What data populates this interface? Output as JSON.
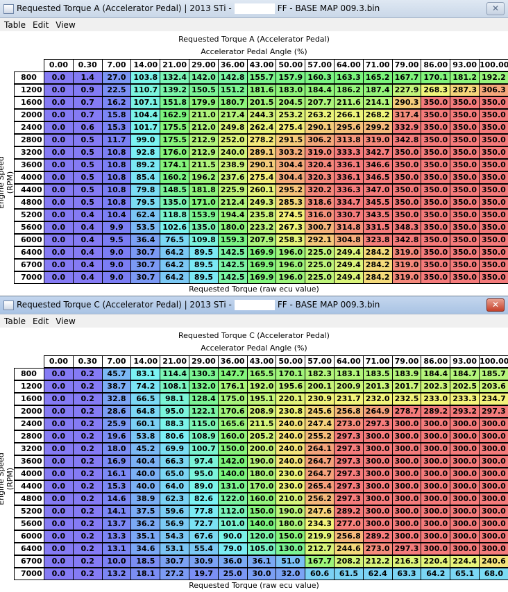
{
  "windows": [
    {
      "title_left": "Requested Torque A (Accelerator Pedal) | 2013 STi -",
      "title_right": "FF - BASE MAP 009.3.bin",
      "active": false,
      "menu": [
        "Table",
        "Edit",
        "View"
      ],
      "table_title": "Requested Torque A (Accelerator Pedal)",
      "x_label": "Accelerator Pedal Angle (%)",
      "y_label": "Engine Speed (RPM)",
      "footer": "Requested Torque (raw ecu value)",
      "columns": [
        "0.00",
        "0.30",
        "7.00",
        "14.00",
        "21.00",
        "29.00",
        "36.00",
        "43.00",
        "50.00",
        "57.00",
        "64.00",
        "71.00",
        "79.00",
        "86.00",
        "93.00",
        "100.00"
      ],
      "rows": [
        {
          "label": "800",
          "values": [
            "0.0",
            "1.4",
            "27.0",
            "103.8",
            "132.4",
            "142.0",
            "142.8",
            "155.7",
            "157.9",
            "160.3",
            "163.3",
            "165.2",
            "167.7",
            "170.1",
            "181.2",
            "192.2"
          ]
        },
        {
          "label": "1200",
          "values": [
            "0.0",
            "0.9",
            "22.5",
            "110.7",
            "139.2",
            "150.5",
            "151.2",
            "181.6",
            "183.0",
            "184.4",
            "186.2",
            "187.4",
            "227.9",
            "268.3",
            "287.3",
            "306.3"
          ]
        },
        {
          "label": "1600",
          "values": [
            "0.0",
            "0.7",
            "16.2",
            "107.1",
            "151.8",
            "179.9",
            "180.7",
            "201.5",
            "204.5",
            "207.7",
            "211.6",
            "214.1",
            "290.3",
            "350.0",
            "350.0",
            "350.0"
          ]
        },
        {
          "label": "2000",
          "values": [
            "0.0",
            "0.7",
            "15.8",
            "104.4",
            "162.9",
            "211.0",
            "217.4",
            "244.3",
            "253.2",
            "263.2",
            "266.1",
            "268.2",
            "317.4",
            "350.0",
            "350.0",
            "350.0"
          ]
        },
        {
          "label": "2400",
          "values": [
            "0.0",
            "0.6",
            "15.3",
            "101.7",
            "175.5",
            "212.0",
            "249.8",
            "262.4",
            "275.4",
            "290.1",
            "295.6",
            "299.2",
            "332.9",
            "350.0",
            "350.0",
            "350.0"
          ]
        },
        {
          "label": "2800",
          "values": [
            "0.0",
            "0.5",
            "11.7",
            "99.0",
            "175.5",
            "212.9",
            "252.0",
            "278.2",
            "291.5",
            "306.2",
            "313.8",
            "319.0",
            "342.8",
            "350.0",
            "350.0",
            "350.0"
          ]
        },
        {
          "label": "3200",
          "values": [
            "0.0",
            "0.5",
            "10.8",
            "92.8",
            "176.0",
            "212.9",
            "240.0",
            "289.1",
            "303.2",
            "319.0",
            "333.3",
            "342.7",
            "350.0",
            "350.0",
            "350.0",
            "350.0"
          ]
        },
        {
          "label": "3600",
          "values": [
            "0.0",
            "0.5",
            "10.8",
            "89.2",
            "174.1",
            "211.5",
            "238.9",
            "290.1",
            "304.4",
            "320.4",
            "336.1",
            "346.6",
            "350.0",
            "350.0",
            "350.0",
            "350.0"
          ]
        },
        {
          "label": "4000",
          "values": [
            "0.0",
            "0.5",
            "10.8",
            "85.4",
            "160.2",
            "196.2",
            "237.6",
            "275.4",
            "304.4",
            "320.3",
            "336.1",
            "346.5",
            "350.0",
            "350.0",
            "350.0",
            "350.0"
          ]
        },
        {
          "label": "4400",
          "values": [
            "0.0",
            "0.5",
            "10.8",
            "79.8",
            "148.5",
            "181.8",
            "225.9",
            "260.1",
            "295.2",
            "320.2",
            "336.3",
            "347.0",
            "350.0",
            "350.0",
            "350.0",
            "350.0"
          ]
        },
        {
          "label": "4800",
          "values": [
            "0.0",
            "0.5",
            "10.8",
            "79.5",
            "135.0",
            "171.0",
            "212.4",
            "249.3",
            "285.3",
            "318.6",
            "334.7",
            "345.5",
            "350.0",
            "350.0",
            "350.0",
            "350.0"
          ]
        },
        {
          "label": "5200",
          "values": [
            "0.0",
            "0.4",
            "10.4",
            "62.4",
            "118.8",
            "153.9",
            "194.4",
            "235.8",
            "274.5",
            "316.0",
            "330.7",
            "343.5",
            "350.0",
            "350.0",
            "350.0",
            "350.0"
          ]
        },
        {
          "label": "5600",
          "values": [
            "0.0",
            "0.4",
            "9.9",
            "53.5",
            "102.6",
            "135.0",
            "180.0",
            "223.2",
            "267.3",
            "300.7",
            "314.8",
            "331.5",
            "348.3",
            "350.0",
            "350.0",
            "350.0"
          ]
        },
        {
          "label": "6000",
          "values": [
            "0.0",
            "0.4",
            "9.5",
            "36.4",
            "76.5",
            "109.8",
            "159.3",
            "207.9",
            "258.3",
            "292.1",
            "304.8",
            "323.8",
            "342.8",
            "350.0",
            "350.0",
            "350.0"
          ]
        },
        {
          "label": "6400",
          "values": [
            "0.0",
            "0.4",
            "9.0",
            "30.7",
            "64.2",
            "89.5",
            "142.5",
            "169.9",
            "196.0",
            "225.0",
            "249.4",
            "284.2",
            "319.0",
            "350.0",
            "350.0",
            "350.0"
          ]
        },
        {
          "label": "6700",
          "values": [
            "0.0",
            "0.4",
            "9.0",
            "30.7",
            "64.2",
            "89.5",
            "142.5",
            "169.9",
            "196.0",
            "225.0",
            "249.4",
            "284.2",
            "319.0",
            "350.0",
            "350.0",
            "350.0"
          ]
        },
        {
          "label": "7000",
          "values": [
            "0.0",
            "0.4",
            "9.0",
            "30.7",
            "64.2",
            "89.5",
            "142.5",
            "169.9",
            "196.0",
            "225.0",
            "249.4",
            "284.2",
            "319.0",
            "350.0",
            "350.0",
            "350.0"
          ]
        }
      ]
    },
    {
      "title_left": "Requested Torque C (Accelerator Pedal) | 2013 STi -",
      "title_right": "FF - BASE MAP 009.3.bin",
      "active": true,
      "menu": [
        "Table",
        "Edit",
        "View"
      ],
      "table_title": "Requested Torque C (Accelerator Pedal)",
      "x_label": "Accelerator Pedal Angle (%)",
      "y_label": "Engine Speed (RPM)",
      "footer": "Requested Torque (raw ecu value)",
      "columns": [
        "0.00",
        "0.30",
        "7.00",
        "14.00",
        "21.00",
        "29.00",
        "36.00",
        "43.00",
        "50.00",
        "57.00",
        "64.00",
        "71.00",
        "79.00",
        "86.00",
        "93.00",
        "100.00"
      ],
      "rows": [
        {
          "label": "800",
          "values": [
            "0.0",
            "0.2",
            "45.7",
            "83.1",
            "114.4",
            "130.3",
            "147.7",
            "165.5",
            "170.1",
            "182.3",
            "183.1",
            "183.5",
            "183.9",
            "184.4",
            "184.7",
            "185.7"
          ]
        },
        {
          "label": "1200",
          "values": [
            "0.0",
            "0.2",
            "38.7",
            "74.2",
            "108.1",
            "132.0",
            "176.1",
            "192.0",
            "195.6",
            "200.1",
            "200.9",
            "201.3",
            "201.7",
            "202.3",
            "202.5",
            "203.6"
          ]
        },
        {
          "label": "1600",
          "values": [
            "0.0",
            "0.2",
            "32.8",
            "66.5",
            "98.1",
            "128.4",
            "175.0",
            "195.1",
            "220.1",
            "230.9",
            "231.7",
            "232.0",
            "232.5",
            "233.0",
            "233.3",
            "234.7"
          ]
        },
        {
          "label": "2000",
          "values": [
            "0.0",
            "0.2",
            "28.6",
            "64.8",
            "95.0",
            "122.1",
            "170.6",
            "208.9",
            "230.8",
            "245.6",
            "256.8",
            "264.9",
            "278.7",
            "289.2",
            "293.2",
            "297.3"
          ]
        },
        {
          "label": "2400",
          "values": [
            "0.0",
            "0.2",
            "25.9",
            "60.1",
            "88.3",
            "115.0",
            "165.6",
            "211.5",
            "240.0",
            "247.4",
            "273.0",
            "297.3",
            "300.0",
            "300.0",
            "300.0",
            "300.0"
          ]
        },
        {
          "label": "2800",
          "values": [
            "0.0",
            "0.2",
            "19.6",
            "53.8",
            "80.6",
            "108.9",
            "160.0",
            "205.2",
            "240.0",
            "255.2",
            "297.3",
            "300.0",
            "300.0",
            "300.0",
            "300.0",
            "300.0"
          ]
        },
        {
          "label": "3200",
          "values": [
            "0.0",
            "0.2",
            "18.0",
            "45.2",
            "69.9",
            "100.7",
            "150.0",
            "200.0",
            "240.0",
            "264.1",
            "297.3",
            "300.0",
            "300.0",
            "300.0",
            "300.0",
            "300.0"
          ]
        },
        {
          "label": "3600",
          "values": [
            "0.0",
            "0.2",
            "16.9",
            "40.4",
            "66.3",
            "97.4",
            "142.0",
            "190.0",
            "240.0",
            "264.7",
            "297.3",
            "300.0",
            "300.0",
            "300.0",
            "300.0",
            "300.0"
          ]
        },
        {
          "label": "4000",
          "values": [
            "0.0",
            "0.2",
            "16.1",
            "40.0",
            "65.0",
            "95.0",
            "140.0",
            "180.0",
            "230.0",
            "264.7",
            "297.3",
            "300.0",
            "300.0",
            "300.0",
            "300.0",
            "300.0"
          ]
        },
        {
          "label": "4400",
          "values": [
            "0.0",
            "0.2",
            "15.3",
            "40.0",
            "64.0",
            "89.0",
            "131.0",
            "170.0",
            "230.0",
            "265.4",
            "297.3",
            "300.0",
            "300.0",
            "300.0",
            "300.0",
            "300.0"
          ]
        },
        {
          "label": "4800",
          "values": [
            "0.0",
            "0.2",
            "14.6",
            "38.9",
            "62.3",
            "82.6",
            "122.0",
            "160.0",
            "210.0",
            "256.2",
            "297.3",
            "300.0",
            "300.0",
            "300.0",
            "300.0",
            "300.0"
          ]
        },
        {
          "label": "5200",
          "values": [
            "0.0",
            "0.2",
            "14.1",
            "37.5",
            "59.6",
            "77.8",
            "112.0",
            "150.0",
            "190.0",
            "247.6",
            "289.2",
            "300.0",
            "300.0",
            "300.0",
            "300.0",
            "300.0"
          ]
        },
        {
          "label": "5600",
          "values": [
            "0.0",
            "0.2",
            "13.7",
            "36.2",
            "56.9",
            "72.7",
            "101.0",
            "140.0",
            "180.0",
            "234.3",
            "277.0",
            "300.0",
            "300.0",
            "300.0",
            "300.0",
            "300.0"
          ]
        },
        {
          "label": "6000",
          "values": [
            "0.0",
            "0.2",
            "13.3",
            "35.1",
            "54.3",
            "67.6",
            "90.0",
            "120.0",
            "150.0",
            "219.9",
            "256.8",
            "289.2",
            "300.0",
            "300.0",
            "300.0",
            "300.0"
          ]
        },
        {
          "label": "6400",
          "values": [
            "0.0",
            "0.2",
            "13.1",
            "34.6",
            "53.1",
            "55.4",
            "79.0",
            "105.0",
            "130.0",
            "212.7",
            "244.6",
            "273.0",
            "297.3",
            "300.0",
            "300.0",
            "300.0"
          ]
        },
        {
          "label": "6700",
          "values": [
            "0.0",
            "0.2",
            "10.0",
            "18.5",
            "30.7",
            "30.9",
            "36.0",
            "36.1",
            "51.0",
            "167.7",
            "208.2",
            "212.2",
            "216.3",
            "220.4",
            "224.4",
            "240.6"
          ]
        },
        {
          "label": "7000",
          "values": [
            "0.0",
            "0.2",
            "13.2",
            "18.1",
            "27.2",
            "19.7",
            "25.0",
            "30.0",
            "32.0",
            "60.6",
            "61.5",
            "62.4",
            "63.3",
            "64.2",
            "65.1",
            "68.0"
          ]
        }
      ]
    }
  ]
}
